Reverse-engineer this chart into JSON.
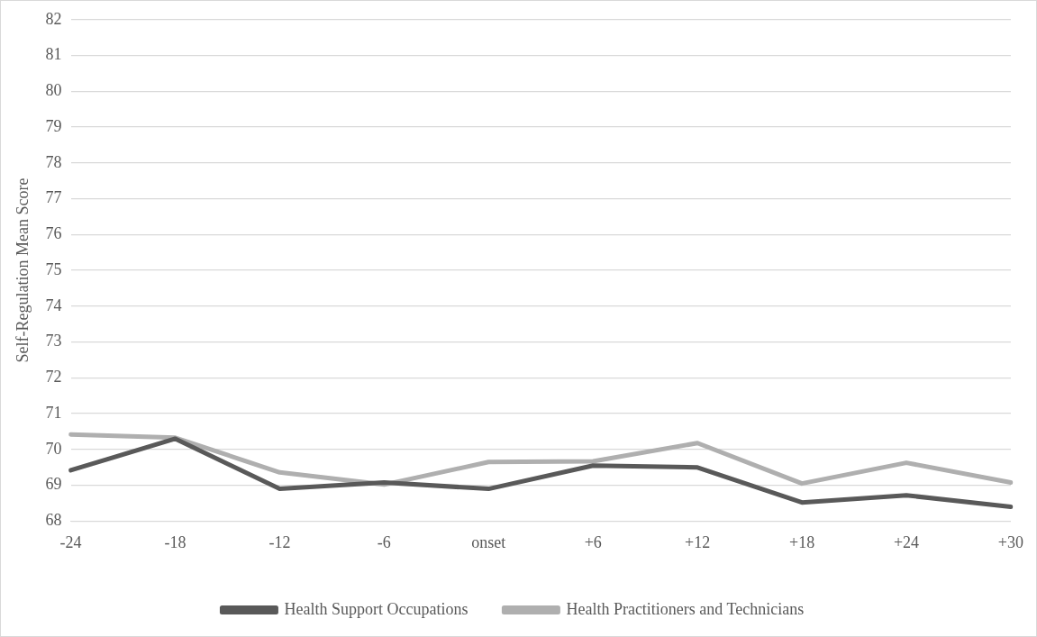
{
  "chart_data": {
    "type": "line",
    "ylabel": "Self-Regulation Mean Score",
    "categories": [
      "-24",
      "-18",
      "-12",
      "-6",
      "onset",
      "+6",
      "+12",
      "+18",
      "+24",
      "+30"
    ],
    "series": [
      {
        "name": "Health Support Occupations",
        "color": "#595959",
        "values": [
          69.42,
          70.3,
          68.9,
          69.08,
          68.9,
          69.55,
          69.5,
          68.52,
          68.72,
          68.4
        ]
      },
      {
        "name": "Health Practitioners and Technicians",
        "color": "#afafaf",
        "values": [
          70.42,
          70.33,
          69.36,
          69.02,
          69.65,
          69.67,
          70.18,
          69.05,
          69.63,
          69.08
        ]
      }
    ],
    "ylim": [
      68,
      82
    ],
    "yticks": [
      68,
      69,
      70,
      71,
      72,
      73,
      74,
      75,
      76,
      77,
      78,
      79,
      80,
      81,
      82
    ],
    "grid": "y",
    "legend": "bottom",
    "marker": "none",
    "line_style": "solid"
  }
}
